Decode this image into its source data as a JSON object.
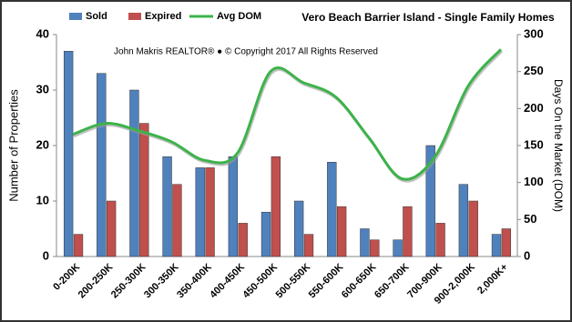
{
  "chart_data": {
    "type": "bar",
    "title": "Vero Beach Barrier Island - Single Family Homes",
    "annotation": "John Makris REALTOR®  ●  © Copyright 2017 All Rights Reserved",
    "ylabel": "Number  of  Properties",
    "y2label": "Days On the Market (DOM)",
    "categories": [
      "0-200K",
      "200-250K",
      "250-300K",
      "300-350K",
      "350-400K",
      "400-450K",
      "450-500K",
      "500-550K",
      "550-600K",
      "600-650K",
      "650-700K",
      "700-900K",
      "900-2,000K",
      "2,000K+"
    ],
    "series": [
      {
        "name": "Sold",
        "color": "#4f81bd",
        "values": [
          37,
          33,
          30,
          18,
          16,
          18,
          8,
          10,
          17,
          5,
          3,
          20,
          13,
          4
        ]
      },
      {
        "name": "Expired",
        "color": "#c0504d",
        "values": [
          4,
          10,
          24,
          13,
          16,
          6,
          18,
          4,
          9,
          3,
          9,
          6,
          10,
          5
        ]
      },
      {
        "name": "Avg DOM",
        "type": "line",
        "axis": "y2",
        "color": "#3cb34a",
        "values": [
          165,
          180,
          170,
          155,
          130,
          140,
          250,
          235,
          215,
          160,
          105,
          135,
          230,
          280
        ]
      }
    ],
    "ylim": [
      0,
      40
    ],
    "yticks": [
      0,
      10,
      20,
      30,
      40
    ],
    "y2lim": [
      0,
      300
    ],
    "y2ticks": [
      0,
      50,
      100,
      150,
      200,
      250,
      300
    ]
  }
}
